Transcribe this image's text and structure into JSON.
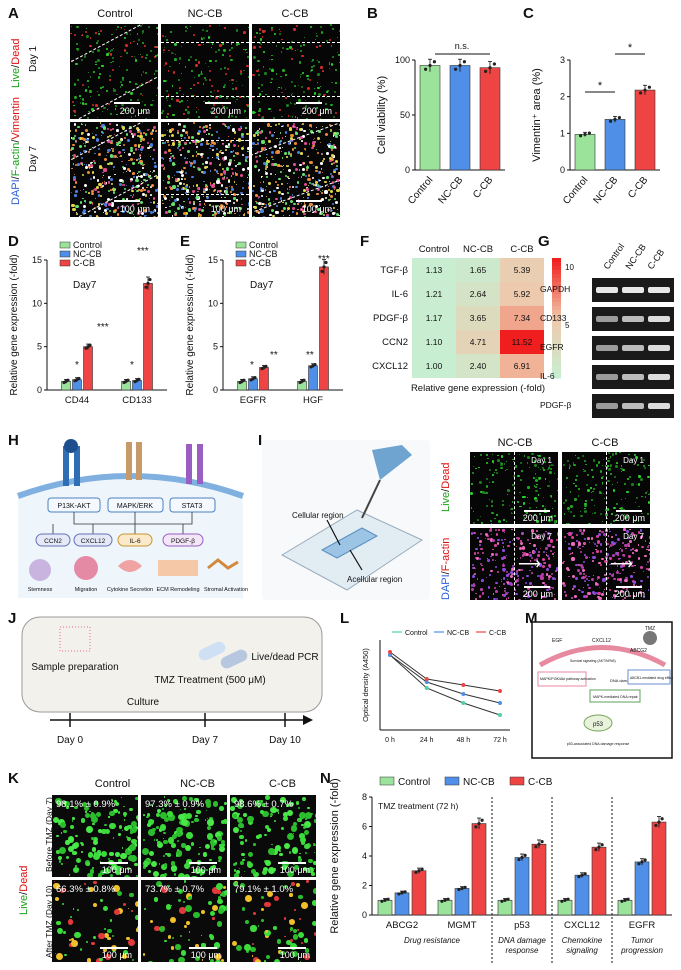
{
  "panels": {
    "A": {
      "letter": "A",
      "cols": [
        "Control",
        "NC-CB",
        "C-CB"
      ],
      "rows": [
        "Day 1",
        "Day 7"
      ],
      "side_label_top": [
        "Live",
        "/",
        "Dead"
      ],
      "side_label_bottom": [
        "DAPI",
        "/",
        "F-actin",
        "/",
        "Vimentin"
      ],
      "scale_top": "200 μm",
      "scale_bottom": "100 μm"
    },
    "B": {
      "letter": "B"
    },
    "C": {
      "letter": "C"
    },
    "D": {
      "letter": "D"
    },
    "E": {
      "letter": "E"
    },
    "F": {
      "letter": "F"
    },
    "G": {
      "letter": "G"
    },
    "H": {
      "letter": "H"
    },
    "I": {
      "letter": "I"
    },
    "J": {
      "letter": "J"
    },
    "K": {
      "letter": "K"
    },
    "L": {
      "letter": "L"
    },
    "M": {
      "letter": "M"
    },
    "N": {
      "letter": "N"
    }
  },
  "colors": {
    "control": "#9be39b",
    "nccb": "#4f8fe8",
    "ccb": "#ef4444"
  },
  "chart_data": [
    {
      "panel": "B",
      "type": "bar",
      "ylabel": "Cell viability (%)",
      "categories": [
        "Control",
        "NC-CB",
        "C-CB"
      ],
      "values": [
        95,
        95,
        93
      ],
      "ylim": [
        0,
        100
      ],
      "yticks": [
        0,
        50,
        100
      ],
      "annotation": "n.s."
    },
    {
      "panel": "C",
      "type": "bar",
      "ylabel": "Vimentin⁺ area (%)",
      "categories": [
        "Control",
        "NC-CB",
        "C-CB"
      ],
      "values": [
        0.97,
        1.38,
        2.18
      ],
      "ylim": [
        0,
        3
      ],
      "yticks": [
        0,
        1,
        2,
        3
      ],
      "annotations": [
        "*",
        "*"
      ]
    },
    {
      "panel": "D",
      "type": "bar",
      "ylabel": "Relative gene expression (-fold)",
      "subtitle": "Day7",
      "categories": [
        "CD44",
        "CD133"
      ],
      "series": [
        {
          "name": "Control",
          "values": [
            1.0,
            1.0
          ]
        },
        {
          "name": "NC-CB",
          "values": [
            1.2,
            1.1
          ]
        },
        {
          "name": "C-CB",
          "values": [
            5.0,
            12.3
          ]
        }
      ],
      "ylim": [
        0,
        15
      ],
      "yticks": [
        0,
        5,
        10,
        15
      ],
      "annotations": [
        "*",
        "***",
        "*",
        "***"
      ]
    },
    {
      "panel": "E",
      "type": "bar",
      "ylabel": "Relative gene expression (-fold)",
      "subtitle": "Day7",
      "categories": [
        "EGFR",
        "HGF"
      ],
      "series": [
        {
          "name": "Control",
          "values": [
            1.0,
            1.0
          ]
        },
        {
          "name": "NC-CB",
          "values": [
            1.3,
            2.8
          ]
        },
        {
          "name": "C-CB",
          "values": [
            2.6,
            14.2
          ]
        }
      ],
      "ylim": [
        0,
        15
      ],
      "yticks": [
        0,
        5,
        10,
        15
      ],
      "annotations": [
        "*",
        "**",
        "**",
        "***"
      ]
    },
    {
      "panel": "F",
      "type": "heatmap",
      "xlabel": "Relative gene expression (-fold)",
      "columns": [
        "Control",
        "NC-CB",
        "C-CB"
      ],
      "rows": [
        "TGF-β",
        "IL-6",
        "PDGF-β",
        "CCN2",
        "CXCL12"
      ],
      "values": [
        [
          "1.13",
          "1.65",
          "5.39"
        ],
        [
          "1.21",
          "2.64",
          "5.92"
        ],
        [
          "1.17",
          "3.65",
          "7.34"
        ],
        [
          "1.10",
          "4.71",
          "11.52"
        ],
        [
          "1.00",
          "2.40",
          "6.91"
        ]
      ],
      "colorbar_ticks": [
        "10",
        "5"
      ]
    },
    {
      "panel": "L",
      "type": "line",
      "ylabel": "Optical density (A450)",
      "x": [
        "0 h",
        "24 h",
        "48 h",
        "72 h"
      ],
      "series": [
        {
          "name": "Control",
          "values": [
            2.5,
            1.4,
            0.9,
            0.5
          ]
        },
        {
          "name": "NC-CB",
          "values": [
            2.5,
            1.6,
            1.2,
            0.9
          ]
        },
        {
          "name": "C-CB",
          "values": [
            2.6,
            1.7,
            1.5,
            1.3
          ]
        }
      ]
    },
    {
      "panel": "N",
      "type": "bar",
      "ylabel": "Relative gene expression (-fold)",
      "subtitle": "TMZ treatment (72 h)",
      "categories": [
        "ABCG2",
        "MGMT",
        "p53",
        "CXCL12",
        "EGFR"
      ],
      "series": [
        {
          "name": "Control",
          "values": [
            1.0,
            1.0,
            1.0,
            1.0,
            1.0
          ]
        },
        {
          "name": "NC-CB",
          "values": [
            1.5,
            1.8,
            3.9,
            2.7,
            3.6
          ]
        },
        {
          "name": "C-CB",
          "values": [
            3.0,
            6.2,
            4.8,
            4.6,
            6.3
          ]
        }
      ],
      "ylim": [
        0,
        8
      ],
      "yticks": [
        0,
        2,
        4,
        6,
        8
      ],
      "groups": [
        "Drug resistance",
        "DNA damage response",
        "Chemokine signaling",
        "Tumor progression"
      ]
    }
  ],
  "G": {
    "cols": [
      "Control",
      "NC-CB",
      "C-CB"
    ],
    "rows": [
      "GAPDH",
      "CD133",
      "EGFR",
      "IL-6",
      "PDGF-β"
    ]
  },
  "H": {
    "pathways": [
      "P13K-AKT",
      "MAPK/ERK",
      "STAT3"
    ],
    "factors": [
      "CCN2",
      "CXCL12",
      "IL-6",
      "PDGF-β"
    ],
    "outcomes": [
      "Stemness",
      "Migration",
      "Cytokine Secretion",
      "ECM Remodeling",
      "Stromal Activation"
    ]
  },
  "I": {
    "regions": [
      "Cellular region",
      "Acellular region"
    ],
    "cols": [
      "NC-CB",
      "C-CB"
    ],
    "days": [
      "Day 1",
      "Day 7"
    ],
    "side_label_top": [
      "Live",
      "/",
      "Dead"
    ],
    "side_label_bottom": [
      "DAPI",
      "/",
      "F-actin"
    ],
    "scale": "200 μm"
  },
  "J": {
    "steps": [
      "Sample preparation",
      "Culture",
      "TMZ Treatment (500 μM)",
      "Live/dead PCR"
    ],
    "days": [
      "Day 0",
      "Day 7",
      "Day 10"
    ]
  },
  "K": {
    "cols": [
      "Control",
      "NC-CB",
      "C-CB"
    ],
    "rows": [
      "Before TMZ (Day 7)",
      "After TMZ (Day 10)"
    ],
    "side_label": [
      "Live",
      "/",
      "Dead"
    ],
    "pct_top": [
      "98.1% ± 0.9%",
      "97.3% ± 0.9%",
      "98.6% ± 0.7%"
    ],
    "pct_bottom": [
      "66.3% ± 0.8%",
      "73.7% ± 0.7%",
      "79.1% ± 1.0%"
    ],
    "scale": "100 μm"
  },
  "M": {
    "labels": [
      "TMZ",
      "EGF",
      "CXCL12",
      "ABCG2",
      "MAPK/PI3K/Akt pathway activation",
      "Survival signaling (AKT/NFkB)",
      "DNA damage",
      "ABCB1-mediated drug efflux",
      "MAPK-mediated DNA repair",
      "p53",
      "p53-associated DNA damage response"
    ]
  }
}
